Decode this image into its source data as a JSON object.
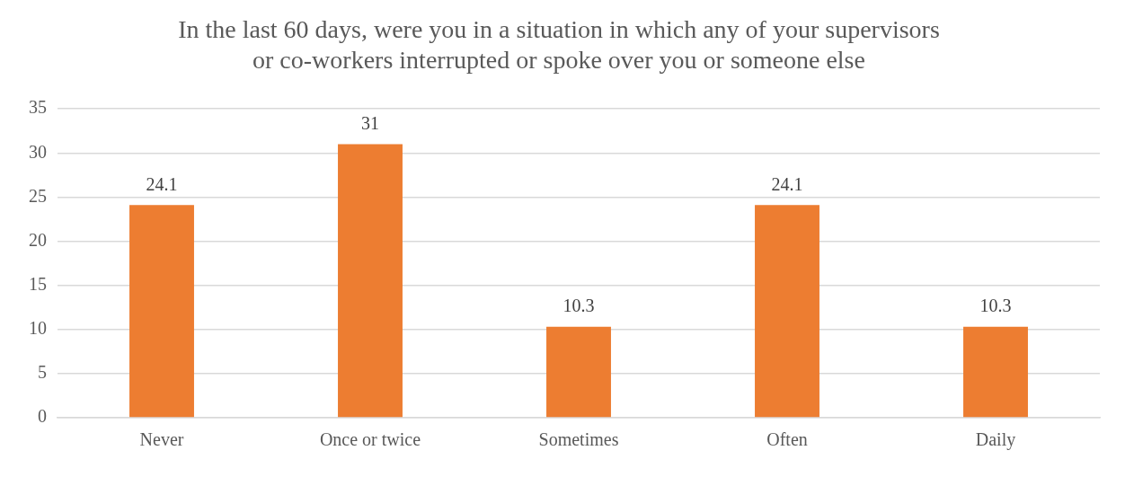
{
  "chart_data": {
    "type": "bar",
    "title": "In the last 60 days, were you in a situation in which any of your supervisors\nor co-workers interrupted or spoke over you or someone else",
    "categories": [
      "Never",
      "Once or twice",
      "Sometimes",
      "Often",
      "Daily"
    ],
    "values": [
      24.1,
      31,
      10.3,
      24.1,
      10.3
    ],
    "color": "#ed7d31",
    "ylim": [
      0,
      35
    ],
    "yticks": [
      0,
      5,
      10,
      15,
      20,
      25,
      30,
      35
    ],
    "grid": "y",
    "data_labels": true,
    "legend": false
  }
}
